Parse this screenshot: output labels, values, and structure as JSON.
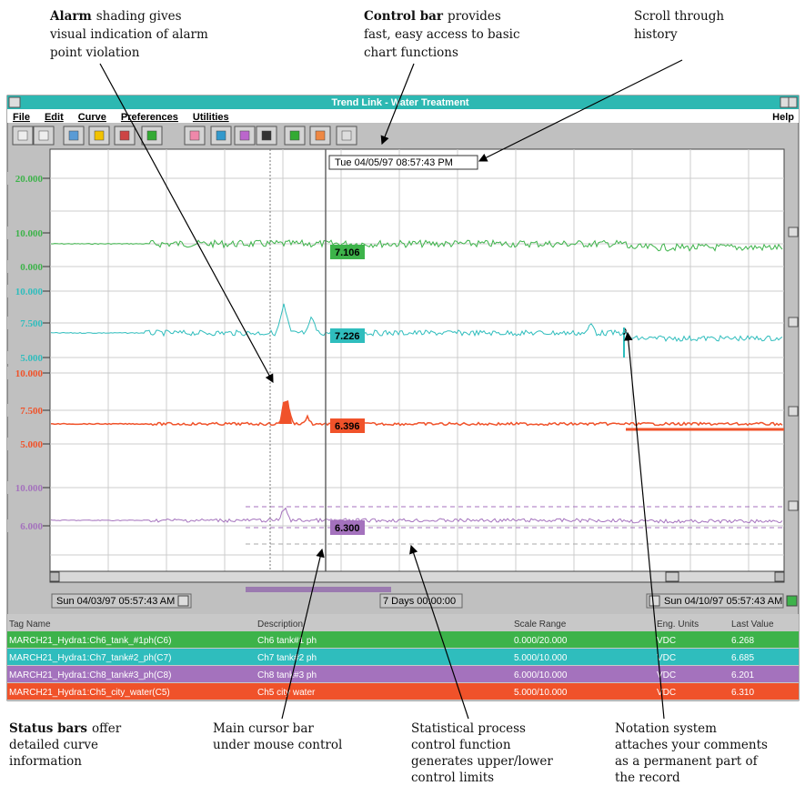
{
  "callouts": [
    {
      "heading": [
        "Alarm"
      ],
      "body": [
        "shading gives",
        "visual indication of alarm",
        "point violation"
      ]
    },
    {
      "heading": [
        "Control bar"
      ],
      "body": [
        "provides",
        "fast, easy access to basic",
        "chart functions"
      ]
    },
    {
      "heading": [
        "Scroll through",
        "history"
      ]
    },
    {
      "heading": [
        "Status bars"
      ],
      "body": [
        "offer",
        "detailed curve",
        "information"
      ]
    },
    {
      "heading": [
        "Main cursor bar"
      ],
      "body": [
        "under mouse control"
      ]
    },
    {
      "heading": [
        "Statistical process",
        "control function"
      ],
      "body": [
        "generates upper/lower",
        "control limits"
      ]
    },
    {
      "heading": [
        "Notation system"
      ],
      "body": [
        "attaches your comments",
        "as a permanent part of",
        "the record"
      ]
    }
  ],
  "window": {
    "title": "Trend Link - Water Treatment",
    "menu": [
      "File",
      "Edit",
      "Curve",
      "Preferences",
      "Utilities"
    ],
    "help": "Help",
    "cursor_time": "Tue 04/05/97 08:57:43 PM",
    "start_time": "Sun 04/03/97 05:57:43 AM",
    "span": "7 Days 00:00:00",
    "end_time": "Sun 04/10/97 05:57:43 AM",
    "axes": [
      {
        "color": "#3db34a",
        "labels": [
          "20.000",
          "10.000",
          "0.000"
        ],
        "cursor_value": "7.106"
      },
      {
        "color": "#2fbdbd",
        "labels": [
          "10.000",
          "7.500",
          "5.000"
        ],
        "cursor_value": "7.226"
      },
      {
        "color": "#f0522a",
        "labels": [
          "10.000",
          "7.500",
          "5.000"
        ],
        "cursor_value": "6.396"
      },
      {
        "color": "#a472bd",
        "labels": [
          "10.000",
          "6.000"
        ],
        "cursor_value": "6.300"
      }
    ],
    "table": {
      "header": [
        "Tag Name",
        "Description",
        "Scale Range",
        "Eng. Units",
        "Last Value"
      ],
      "rows": [
        [
          "MARCH21_Hydra1:Ch6_tank_#1ph(C6)",
          "Ch6 tank#1 ph",
          "0.000/20.000",
          "VDC",
          "6.268"
        ],
        [
          "MARCH21_Hydra1:Ch7_tank#2_ph(C7)",
          "Ch7 tank#2 ph",
          "5.000/10.000",
          "VDC",
          "6.685"
        ],
        [
          "MARCH21_Hydra1:Ch8_tank#3_ph(C8)",
          "Ch8 tank#3 ph",
          "6.000/10.000",
          "VDC",
          "6.201"
        ],
        [
          "MARCH21_Hydra1:Ch5_city_water(C5)",
          "Ch5 city water",
          "5.000/10.000",
          "VDC",
          "6.310"
        ]
      ]
    }
  }
}
